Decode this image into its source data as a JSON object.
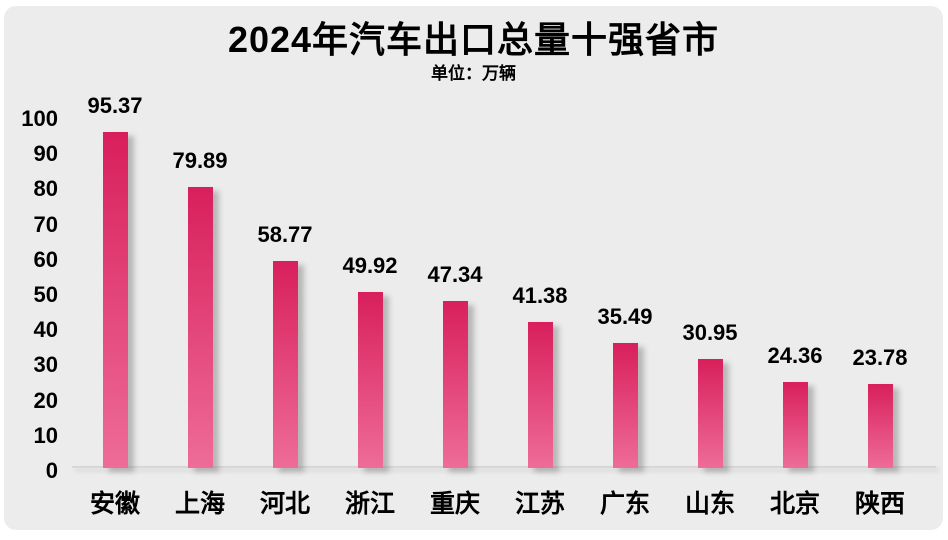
{
  "chart_data": {
    "type": "bar",
    "title": "2024年汽车出口总量十强省市",
    "subtitle": "单位：万辆",
    "categories": [
      "安徽",
      "上海",
      "河北",
      "浙江",
      "重庆",
      "江苏",
      "广东",
      "山东",
      "北京",
      "陕西"
    ],
    "values": [
      95.37,
      79.89,
      58.77,
      49.92,
      47.34,
      41.38,
      35.49,
      30.95,
      24.36,
      23.78
    ],
    "value_labels": [
      "95.37",
      "79.89",
      "58.77",
      "49.92",
      "47.34",
      "41.38",
      "35.49",
      "30.95",
      "24.36",
      "23.78"
    ],
    "xlabel": "",
    "ylabel": "",
    "ylim": [
      0,
      100
    ],
    "yticks": [
      0,
      10,
      20,
      30,
      40,
      50,
      60,
      70,
      80,
      90,
      100
    ],
    "grid": false,
    "legend": false,
    "colors": {
      "bar_gradient_top": "#d81f5c",
      "bar_gradient_bottom": "#ee6c98",
      "panel_background": "#ececec",
      "frame_background": "#ffffff",
      "axis_line": "#d7d7d7",
      "text": "#000000"
    }
  }
}
